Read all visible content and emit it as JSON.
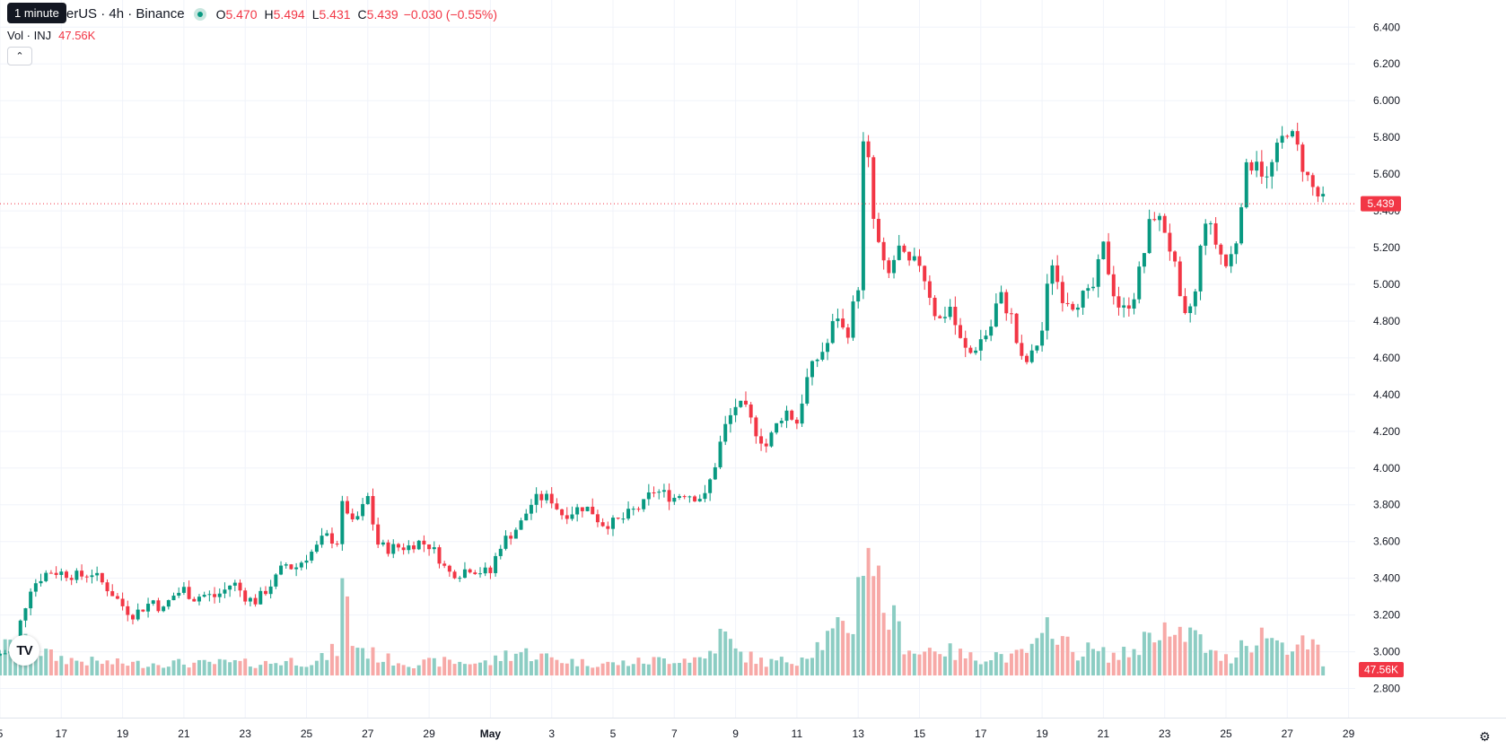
{
  "header": {
    "tooltip": "1 minute",
    "title": "etherUS · 4h · Binance",
    "ohlc": [
      {
        "key": "O",
        "value": "5.470"
      },
      {
        "key": "H",
        "value": "5.494"
      },
      {
        "key": "L",
        "value": "5.431"
      },
      {
        "key": "C",
        "value": "5.439"
      }
    ],
    "change": "−0.030 (−0.55%)",
    "volume_label": "Vol · INJ",
    "volume_value": "47.56K"
  },
  "colors": {
    "up": "#089981",
    "down": "#f23645",
    "vol_up": "#8ccdc3",
    "vol_down": "#f7a9a7",
    "grid": "#f0f3fa"
  },
  "icons": {
    "collapse": "chevron-up-icon",
    "logo": "tradingview-logo",
    "settings": "gear-icon"
  },
  "logo_text": "TV",
  "chart_data": {
    "type": "candlestick",
    "timeframe": "4h",
    "y_ticks": [
      "6.400",
      "6.200",
      "6.000",
      "5.800",
      "5.600",
      "5.400",
      "5.200",
      "5.000",
      "4.800",
      "4.600",
      "4.400",
      "4.200",
      "4.000",
      "3.800",
      "3.600",
      "3.400",
      "3.200",
      "3.000",
      "2.800"
    ],
    "ylim": [
      2.7,
      6.46
    ],
    "x_ticks": [
      {
        "label": "5",
        "day": 15
      },
      {
        "label": "17",
        "day": 17
      },
      {
        "label": "19",
        "day": 19
      },
      {
        "label": "21",
        "day": 21
      },
      {
        "label": "23",
        "day": 23
      },
      {
        "label": "25",
        "day": 25
      },
      {
        "label": "27",
        "day": 27
      },
      {
        "label": "29",
        "day": 29
      },
      {
        "label": "May",
        "day": 31,
        "bold": true
      },
      {
        "label": "3",
        "day": 33
      },
      {
        "label": "5",
        "day": 35
      },
      {
        "label": "7",
        "day": 37
      },
      {
        "label": "9",
        "day": 39
      },
      {
        "label": "11",
        "day": 41
      },
      {
        "label": "13",
        "day": 43
      },
      {
        "label": "15",
        "day": 45
      },
      {
        "label": "17",
        "day": 47
      },
      {
        "label": "19",
        "day": 49
      },
      {
        "label": "21",
        "day": 51
      },
      {
        "label": "23",
        "day": 53
      },
      {
        "label": "25",
        "day": 55
      },
      {
        "label": "27",
        "day": 57
      },
      {
        "label": "29",
        "day": 59
      }
    ],
    "last_price": "5.439",
    "last_price_value": 5.439,
    "last_volume": "47.56K",
    "close_path": [
      [
        15.0,
        2.99
      ],
      [
        15.4,
        3.0
      ],
      [
        15.7,
        3.18
      ],
      [
        16.0,
        3.35
      ],
      [
        16.3,
        3.4
      ],
      [
        16.6,
        3.44
      ],
      [
        17.0,
        3.43
      ],
      [
        17.3,
        3.42
      ],
      [
        17.6,
        3.41
      ],
      [
        18.0,
        3.43
      ],
      [
        18.3,
        3.38
      ],
      [
        18.6,
        3.33
      ],
      [
        19.0,
        3.25
      ],
      [
        19.3,
        3.2
      ],
      [
        19.6,
        3.23
      ],
      [
        20.0,
        3.28
      ],
      [
        20.3,
        3.22
      ],
      [
        20.6,
        3.3
      ],
      [
        21.0,
        3.34
      ],
      [
        21.3,
        3.29
      ],
      [
        21.6,
        3.31
      ],
      [
        22.0,
        3.3
      ],
      [
        22.3,
        3.33
      ],
      [
        22.6,
        3.38
      ],
      [
        23.0,
        3.3
      ],
      [
        23.3,
        3.27
      ],
      [
        23.6,
        3.32
      ],
      [
        24.0,
        3.4
      ],
      [
        24.3,
        3.48
      ],
      [
        24.6,
        3.45
      ],
      [
        25.0,
        3.52
      ],
      [
        25.3,
        3.56
      ],
      [
        25.6,
        3.63
      ],
      [
        26.0,
        3.6
      ],
      [
        26.2,
        3.83
      ],
      [
        26.5,
        3.69
      ],
      [
        26.8,
        3.77
      ],
      [
        27.0,
        3.84
      ],
      [
        27.3,
        3.59
      ],
      [
        27.6,
        3.56
      ],
      [
        28.0,
        3.57
      ],
      [
        28.3,
        3.57
      ],
      [
        28.6,
        3.6
      ],
      [
        29.0,
        3.58
      ],
      [
        29.3,
        3.52
      ],
      [
        29.6,
        3.43
      ],
      [
        30.0,
        3.43
      ],
      [
        30.3,
        3.46
      ],
      [
        30.6,
        3.44
      ],
      [
        31.0,
        3.43
      ],
      [
        31.3,
        3.58
      ],
      [
        31.6,
        3.63
      ],
      [
        32.0,
        3.7
      ],
      [
        32.3,
        3.8
      ],
      [
        32.6,
        3.84
      ],
      [
        33.0,
        3.83
      ],
      [
        33.3,
        3.75
      ],
      [
        33.6,
        3.76
      ],
      [
        34.0,
        3.79
      ],
      [
        34.3,
        3.77
      ],
      [
        34.6,
        3.7
      ],
      [
        35.0,
        3.7
      ],
      [
        35.3,
        3.72
      ],
      [
        35.6,
        3.76
      ],
      [
        36.0,
        3.8
      ],
      [
        36.3,
        3.88
      ],
      [
        36.6,
        3.86
      ],
      [
        37.0,
        3.84
      ],
      [
        37.3,
        3.87
      ],
      [
        37.6,
        3.85
      ],
      [
        38.0,
        3.84
      ],
      [
        38.3,
        4.0
      ],
      [
        38.6,
        4.2
      ],
      [
        39.0,
        4.34
      ],
      [
        39.3,
        4.32
      ],
      [
        39.6,
        4.22
      ],
      [
        40.0,
        4.12
      ],
      [
        40.3,
        4.22
      ],
      [
        40.6,
        4.32
      ],
      [
        41.0,
        4.25
      ],
      [
        41.3,
        4.47
      ],
      [
        41.6,
        4.58
      ],
      [
        42.0,
        4.68
      ],
      [
        42.3,
        4.85
      ],
      [
        42.6,
        4.7
      ],
      [
        43.0,
        5.0
      ],
      [
        43.2,
        5.9
      ],
      [
        43.5,
        5.35
      ],
      [
        43.8,
        5.1
      ],
      [
        44.0,
        5.05
      ],
      [
        44.3,
        5.2
      ],
      [
        44.6,
        5.1
      ],
      [
        45.0,
        5.12
      ],
      [
        45.3,
        4.97
      ],
      [
        45.6,
        4.79
      ],
      [
        46.0,
        4.88
      ],
      [
        46.3,
        4.7
      ],
      [
        46.6,
        4.61
      ],
      [
        47.0,
        4.7
      ],
      [
        47.3,
        4.75
      ],
      [
        47.6,
        4.95
      ],
      [
        48.0,
        4.82
      ],
      [
        48.3,
        4.58
      ],
      [
        48.6,
        4.58
      ],
      [
        49.0,
        4.75
      ],
      [
        49.3,
        5.15
      ],
      [
        49.6,
        4.95
      ],
      [
        50.0,
        4.9
      ],
      [
        50.3,
        4.93
      ],
      [
        50.6,
        4.94
      ],
      [
        51.0,
        5.2
      ],
      [
        51.3,
        4.98
      ],
      [
        51.6,
        4.84
      ],
      [
        52.0,
        4.95
      ],
      [
        52.3,
        5.15
      ],
      [
        52.6,
        5.4
      ],
      [
        53.0,
        5.3
      ],
      [
        53.3,
        5.12
      ],
      [
        53.6,
        4.78
      ],
      [
        54.0,
        4.95
      ],
      [
        54.3,
        5.38
      ],
      [
        54.6,
        5.25
      ],
      [
        55.0,
        5.1
      ],
      [
        55.3,
        5.2
      ],
      [
        55.6,
        5.6
      ],
      [
        56.0,
        5.7
      ],
      [
        56.3,
        5.55
      ],
      [
        56.6,
        5.7
      ],
      [
        57.0,
        5.85
      ],
      [
        57.3,
        5.75
      ],
      [
        57.6,
        5.6
      ],
      [
        57.9,
        5.5
      ],
      [
        58.2,
        5.44
      ]
    ],
    "volume_path": [
      [
        15.0,
        25
      ],
      [
        15.6,
        30
      ],
      [
        16.0,
        28
      ],
      [
        16.7,
        18
      ],
      [
        17.5,
        14
      ],
      [
        18.5,
        12
      ],
      [
        19.5,
        11
      ],
      [
        20.5,
        12
      ],
      [
        21.5,
        11
      ],
      [
        22.5,
        12
      ],
      [
        23.5,
        11
      ],
      [
        24.5,
        14
      ],
      [
        25.3,
        12
      ],
      [
        26.0,
        25
      ],
      [
        26.2,
        90
      ],
      [
        26.5,
        32
      ],
      [
        27.0,
        22
      ],
      [
        27.5,
        16
      ],
      [
        28.5,
        11
      ],
      [
        29.5,
        13
      ],
      [
        30.5,
        12
      ],
      [
        31.0,
        12
      ],
      [
        31.5,
        20
      ],
      [
        32.0,
        22
      ],
      [
        33.0,
        16
      ],
      [
        34.0,
        12
      ],
      [
        35.0,
        11
      ],
      [
        36.0,
        13
      ],
      [
        37.0,
        16
      ],
      [
        38.0,
        16
      ],
      [
        38.6,
        40
      ],
      [
        39.0,
        22
      ],
      [
        40.0,
        12
      ],
      [
        41.0,
        15
      ],
      [
        42.0,
        35
      ],
      [
        42.8,
        48
      ],
      [
        43.0,
        80
      ],
      [
        43.2,
        142
      ],
      [
        43.5,
        112
      ],
      [
        43.8,
        64
      ],
      [
        44.0,
        58
      ],
      [
        44.5,
        32
      ],
      [
        45.0,
        20
      ],
      [
        45.5,
        28
      ],
      [
        46.0,
        22
      ],
      [
        46.8,
        16
      ],
      [
        47.5,
        20
      ],
      [
        48.0,
        16
      ],
      [
        48.6,
        24
      ],
      [
        49.0,
        30
      ],
      [
        49.3,
        58
      ],
      [
        49.6,
        36
      ],
      [
        50.0,
        22
      ],
      [
        50.6,
        24
      ],
      [
        51.0,
        20
      ],
      [
        51.5,
        18
      ],
      [
        52.0,
        24
      ],
      [
        52.4,
        35
      ],
      [
        52.6,
        48
      ],
      [
        53.0,
        44
      ],
      [
        53.3,
        28
      ],
      [
        53.6,
        40
      ],
      [
        54.0,
        38
      ],
      [
        54.5,
        20
      ],
      [
        55.0,
        16
      ],
      [
        55.3,
        18
      ],
      [
        55.6,
        40
      ],
      [
        56.0,
        28
      ],
      [
        56.3,
        45
      ],
      [
        56.6,
        32
      ],
      [
        57.0,
        30
      ],
      [
        57.6,
        28
      ],
      [
        58.0,
        24
      ],
      [
        58.2,
        4
      ]
    ],
    "volume_max": 145
  }
}
